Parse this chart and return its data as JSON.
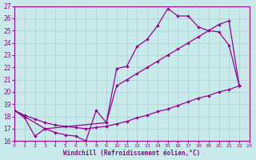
{
  "xlabel": "Windchill (Refroidissement éolien,°C)",
  "bg_color": "#c8eaea",
  "grid_color": "#a8d0d0",
  "line_color": "#990099",
  "xlim": [
    0,
    23
  ],
  "ylim": [
    16,
    27
  ],
  "xticks": [
    0,
    1,
    2,
    3,
    4,
    5,
    6,
    7,
    8,
    9,
    10,
    11,
    12,
    13,
    14,
    15,
    16,
    17,
    18,
    19,
    20,
    21,
    22,
    23
  ],
  "yticks": [
    16,
    17,
    18,
    19,
    20,
    21,
    22,
    23,
    24,
    25,
    26,
    27
  ],
  "curve1_x": [
    0,
    1,
    2,
    3,
    4,
    5,
    6,
    7,
    8,
    9,
    10,
    11,
    12,
    13,
    14,
    15,
    16,
    17,
    18,
    19,
    20,
    21,
    22
  ],
  "curve1_y": [
    18.5,
    17.9,
    16.4,
    17.0,
    16.7,
    16.5,
    16.4,
    16.0,
    18.5,
    17.5,
    21.9,
    22.1,
    23.7,
    24.3,
    25.4,
    26.8,
    26.2,
    26.2,
    25.3,
    25.0,
    24.9,
    23.8,
    20.5
  ],
  "curve2_x": [
    0,
    3,
    9,
    10,
    11,
    12,
    13,
    14,
    15,
    16,
    17,
    18,
    19,
    20,
    21,
    22
  ],
  "curve2_y": [
    18.5,
    17.0,
    17.5,
    20.5,
    21.0,
    21.5,
    22.0,
    22.5,
    23.0,
    23.5,
    24.0,
    24.5,
    25.0,
    25.5,
    25.8,
    20.5
  ],
  "curve3_x": [
    0,
    1,
    2,
    3,
    4,
    5,
    6,
    7,
    8,
    9,
    10,
    11,
    12,
    13,
    14,
    15,
    16,
    17,
    18,
    19,
    20,
    21,
    22
  ],
  "curve3_y": [
    18.5,
    18.1,
    17.8,
    17.5,
    17.3,
    17.2,
    17.1,
    17.0,
    17.1,
    17.2,
    17.4,
    17.6,
    17.9,
    18.1,
    18.4,
    18.6,
    18.9,
    19.2,
    19.5,
    19.7,
    20.0,
    20.2,
    20.5
  ]
}
